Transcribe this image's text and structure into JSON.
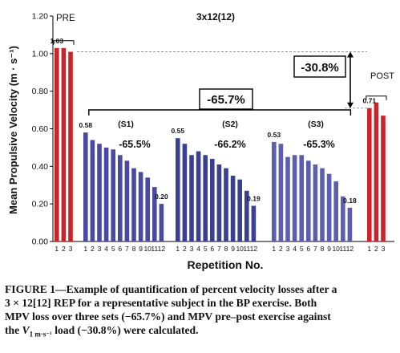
{
  "chart_data": {
    "type": "bar",
    "title": "3x12(12)",
    "ylabel": "Mean Propulsive Velocity (m · s⁻¹)",
    "xlabel": "Repetition No.",
    "ylim": [
      0,
      1.2
    ],
    "yticks": [
      "0.00",
      "0.20",
      "0.40",
      "0.60",
      "0.80",
      "1.00",
      "1.20"
    ],
    "groups": [
      {
        "name": "PRE",
        "color": "#cc2229",
        "categories": [
          "1",
          "2",
          "3"
        ],
        "values": [
          1.03,
          1.03,
          1.01
        ],
        "value_labels": [
          {
            "index": 0,
            "text": "1.03"
          }
        ]
      },
      {
        "name": "(S1)",
        "color": "#4a4aa2",
        "loss": "-65.5%",
        "categories": [
          "1",
          "2",
          "3",
          "4",
          "5",
          "6",
          "7",
          "8",
          "9",
          "10",
          "11",
          "12"
        ],
        "values": [
          0.58,
          0.54,
          0.52,
          0.5,
          0.49,
          0.46,
          0.43,
          0.39,
          0.37,
          0.34,
          0.29,
          0.2
        ],
        "value_labels": [
          {
            "index": 0,
            "text": "0.58"
          },
          {
            "index": 11,
            "text": "0.20"
          }
        ]
      },
      {
        "name": "(S2)",
        "color": "#3a3f92",
        "loss": "-66.2%",
        "categories": [
          "1",
          "2",
          "3",
          "4",
          "5",
          "6",
          "7",
          "8",
          "9",
          "10",
          "11",
          "12"
        ],
        "values": [
          0.55,
          0.52,
          0.46,
          0.48,
          0.46,
          0.44,
          0.41,
          0.39,
          0.35,
          0.33,
          0.27,
          0.19
        ],
        "value_labels": [
          {
            "index": 0,
            "text": "0.55"
          },
          {
            "index": 11,
            "text": "0.19"
          }
        ]
      },
      {
        "name": "(S3)",
        "color": "#5e5eb0",
        "loss": "-65.3%",
        "categories": [
          "1",
          "2",
          "3",
          "4",
          "5",
          "6",
          "7",
          "8",
          "9",
          "10",
          "11",
          "12"
        ],
        "values": [
          0.53,
          0.52,
          0.45,
          0.46,
          0.46,
          0.43,
          0.41,
          0.39,
          0.36,
          0.32,
          0.24,
          0.18
        ],
        "value_labels": [
          {
            "index": 0,
            "text": "0.53"
          },
          {
            "index": 11,
            "text": "0.18"
          }
        ]
      },
      {
        "name": "POST",
        "color": "#cc2229",
        "categories": [
          "1",
          "2",
          "3"
        ],
        "values": [
          0.71,
          0.74,
          0.67
        ],
        "value_labels": [
          {
            "index": 0,
            "text": "0.71"
          }
        ]
      }
    ],
    "annotations": {
      "overall_loss": "-65.7%",
      "pre_post_loss": "-30.8%"
    },
    "grid": false
  },
  "caption": {
    "lines": [
      "FIGURE 1—Example of quantification of percent velocity losses after a",
      "3 × 12[12] REP for a representative subject in the BP exercise. Both",
      "MPV loss over three sets (−65.7%) and MPV pre–post exercise against"
    ],
    "line4_before": "the ",
    "line4_var": "V",
    "line4_sub": "1 m·s⁻¹",
    "line4_after": " load (−30.8%) were calculated."
  }
}
